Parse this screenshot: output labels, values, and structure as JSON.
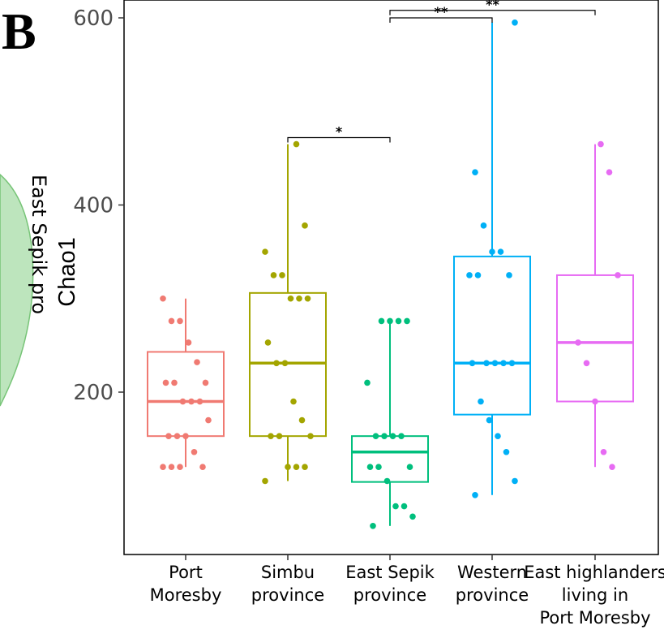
{
  "panel_label": "B",
  "left_fragment": {
    "venn_label": "East Sepik pro",
    "venn_color": "#bde5bd",
    "venn_stroke": "#77c477"
  },
  "chart_data": {
    "type": "boxplot",
    "ylabel": "Chao1",
    "yticks": [
      200,
      400,
      600
    ],
    "ylim": [
      50,
      610
    ],
    "grid": false,
    "categories": [
      {
        "lines": [
          "Port",
          "Moresby"
        ]
      },
      {
        "lines": [
          "Simbu",
          "province"
        ]
      },
      {
        "lines": [
          "East Sepik",
          "province"
        ]
      },
      {
        "lines": [
          "Western",
          "province"
        ]
      },
      {
        "lines": [
          "East highlanders",
          "living in",
          "Port Moresby"
        ]
      }
    ],
    "series": [
      {
        "color": "#f07a72",
        "box": {
          "q1": 153,
          "median": 190,
          "q3": 243,
          "lower": 120,
          "upper": 300
        },
        "points": [
          300,
          276,
          276,
          253,
          232,
          210,
          210,
          210,
          190,
          190,
          190,
          170,
          153,
          153,
          153,
          136,
          120,
          120,
          120,
          120
        ]
      },
      {
        "color": "#a3a500",
        "box": {
          "q1": 153,
          "median": 231,
          "q3": 306,
          "lower": 105,
          "upper": 465
        },
        "points": [
          465,
          378,
          350,
          325,
          325,
          300,
          300,
          300,
          253,
          231,
          231,
          190,
          170,
          153,
          153,
          153,
          120,
          120,
          120,
          105
        ]
      },
      {
        "color": "#00bf7d",
        "box": {
          "q1": 104,
          "median": 136,
          "q3": 153,
          "lower": 57,
          "upper": 276
        },
        "points": [
          276,
          276,
          276,
          276,
          210,
          153,
          153,
          153,
          153,
          120,
          120,
          120,
          105,
          78,
          78,
          67,
          57
        ]
      },
      {
        "color": "#00b0f6",
        "box": {
          "q1": 176,
          "median": 231,
          "q3": 345,
          "lower": 90,
          "upper": 595
        },
        "points": [
          595,
          435,
          378,
          350,
          350,
          325,
          325,
          325,
          231,
          231,
          231,
          231,
          231,
          190,
          170,
          153,
          136,
          105,
          90
        ]
      },
      {
        "color": "#e76bf3",
        "box": {
          "q1": 190,
          "median": 253,
          "q3": 325,
          "lower": 120,
          "upper": 465
        },
        "points": [
          465,
          435,
          325,
          253,
          231,
          190,
          136,
          120
        ]
      }
    ],
    "significance": [
      {
        "from": 1,
        "to": 2,
        "label": "*",
        "y": 472
      },
      {
        "from": 2,
        "to": 3,
        "label": "**",
        "y": 600
      },
      {
        "from": 2,
        "to": 4,
        "label": "**",
        "y": 608
      }
    ]
  }
}
